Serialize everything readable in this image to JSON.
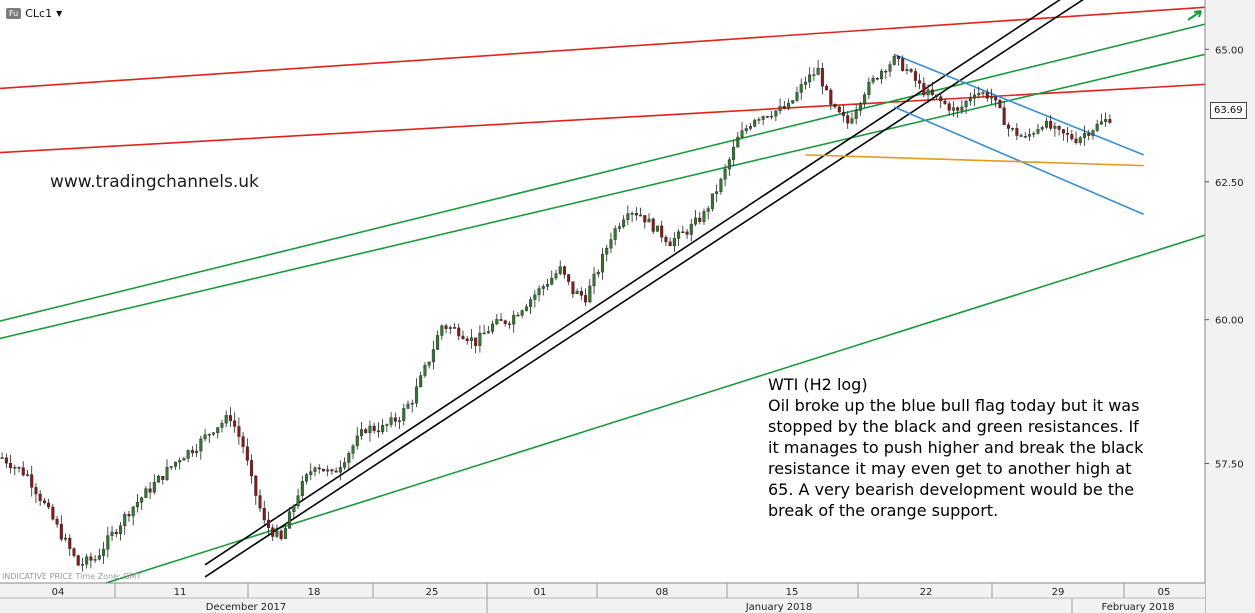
{
  "toolbar": {
    "badge": "Fu",
    "symbol": "CLc1",
    "dropdown_icon": "caret-down-icon"
  },
  "watermark": "www.tradingchannels.uk",
  "footnote": "INDICATIVE PRICE   Time Zone: GMT",
  "note": {
    "title": "WTI (H2 log)",
    "body": "Oil broke up the blue bull flag today but it was stopped by the black and green resistances. If it manages to push higher and break the black resistance it may even get to another high at 65. A very bearish development would be the break of the orange support."
  },
  "last_price": "63.69",
  "colors": {
    "red": "#e0231b",
    "green": "#1a9a3c",
    "black": "#000000",
    "blue": "#3a8fd4",
    "orange": "#e39a1f",
    "candle_up": "#2f7a2f",
    "candle_down": "#8a1a1a"
  },
  "chart_data": {
    "type": "candlestick",
    "symbol": "CLc1",
    "timeframe": "H2",
    "scale": "log",
    "ylim": [
      55.5,
      65.8
    ],
    "y_ticks": [
      "65.00",
      "62.50",
      "60.00",
      "57.50"
    ],
    "x_ticks": [
      "04",
      "11",
      "18",
      "25",
      "01",
      "08",
      "15",
      "22",
      "29",
      "05"
    ],
    "months": [
      "December 2017",
      "January 2018",
      "February 2018"
    ],
    "last_price": 63.69,
    "price_path": [
      [
        0,
        57.6
      ],
      [
        6,
        57.3
      ],
      [
        10,
        56.8
      ],
      [
        14,
        56.3
      ],
      [
        18,
        55.8
      ],
      [
        22,
        55.9
      ],
      [
        26,
        56.3
      ],
      [
        30,
        56.7
      ],
      [
        34,
        57.0
      ],
      [
        38,
        57.3
      ],
      [
        42,
        57.6
      ],
      [
        46,
        57.8
      ],
      [
        50,
        58.1
      ],
      [
        54,
        58.3
      ],
      [
        57,
        57.8
      ],
      [
        59,
        57.2
      ],
      [
        62,
        56.5
      ],
      [
        66,
        56.2
      ],
      [
        70,
        57.0
      ],
      [
        74,
        57.5
      ],
      [
        78,
        57.3
      ],
      [
        82,
        57.7
      ],
      [
        86,
        58.1
      ],
      [
        90,
        58.1
      ],
      [
        94,
        58.3
      ],
      [
        97,
        58.6
      ],
      [
        101,
        59.3
      ],
      [
        104,
        59.9
      ],
      [
        108,
        59.8
      ],
      [
        112,
        59.6
      ],
      [
        116,
        59.9
      ],
      [
        120,
        60.0
      ],
      [
        124,
        60.3
      ],
      [
        128,
        60.6
      ],
      [
        132,
        60.9
      ],
      [
        135,
        60.5
      ],
      [
        138,
        60.4
      ],
      [
        141,
        60.9
      ],
      [
        144,
        61.5
      ],
      [
        148,
        62.0
      ],
      [
        151,
        61.9
      ],
      [
        155,
        61.6
      ],
      [
        158,
        61.4
      ],
      [
        162,
        61.6
      ],
      [
        166,
        61.9
      ],
      [
        170,
        62.5
      ],
      [
        174,
        63.3
      ],
      [
        178,
        63.7
      ],
      [
        182,
        63.8
      ],
      [
        186,
        63.9
      ],
      [
        190,
        64.4
      ],
      [
        193,
        64.6
      ],
      [
        196,
        63.9
      ],
      [
        200,
        63.6
      ],
      [
        204,
        64.2
      ],
      [
        208,
        64.6
      ],
      [
        211,
        64.8
      ],
      [
        214,
        64.6
      ],
      [
        218,
        64.2
      ],
      [
        222,
        64.0
      ],
      [
        226,
        63.8
      ],
      [
        230,
        64.2
      ],
      [
        234,
        64.1
      ],
      [
        238,
        63.5
      ],
      [
        242,
        63.3
      ],
      [
        246,
        63.6
      ],
      [
        250,
        63.4
      ],
      [
        254,
        63.3
      ],
      [
        258,
        63.5
      ],
      [
        262,
        63.69
      ]
    ],
    "trendlines": [
      {
        "color": "red",
        "p1": [
          -10,
          64.2
        ],
        "p2": [
          300,
          65.9
        ]
      },
      {
        "color": "red",
        "p1": [
          -10,
          63.0
        ],
        "p2": [
          300,
          64.4
        ]
      },
      {
        "color": "green",
        "p1": [
          -10,
          59.8
        ],
        "p2": [
          300,
          65.8
        ]
      },
      {
        "color": "green",
        "p1": [
          -10,
          59.5
        ],
        "p2": [
          300,
          65.2
        ]
      },
      {
        "color": "green",
        "p1": [
          20,
          55.4
        ],
        "p2": [
          300,
          61.9
        ]
      },
      {
        "color": "black",
        "p1": [
          48,
          55.6
        ],
        "p2": [
          260,
          66.2
        ]
      },
      {
        "color": "black",
        "p1": [
          48,
          55.8
        ],
        "p2": [
          260,
          66.5
        ]
      },
      {
        "color": "blue",
        "p1": [
          211,
          64.9
        ],
        "p2": [
          270,
          63.0
        ]
      },
      {
        "color": "blue",
        "p1": [
          211,
          63.9
        ],
        "p2": [
          270,
          61.9
        ]
      },
      {
        "color": "orange",
        "p1": [
          190,
          63.0
        ],
        "p2": [
          270,
          62.8
        ]
      }
    ]
  }
}
